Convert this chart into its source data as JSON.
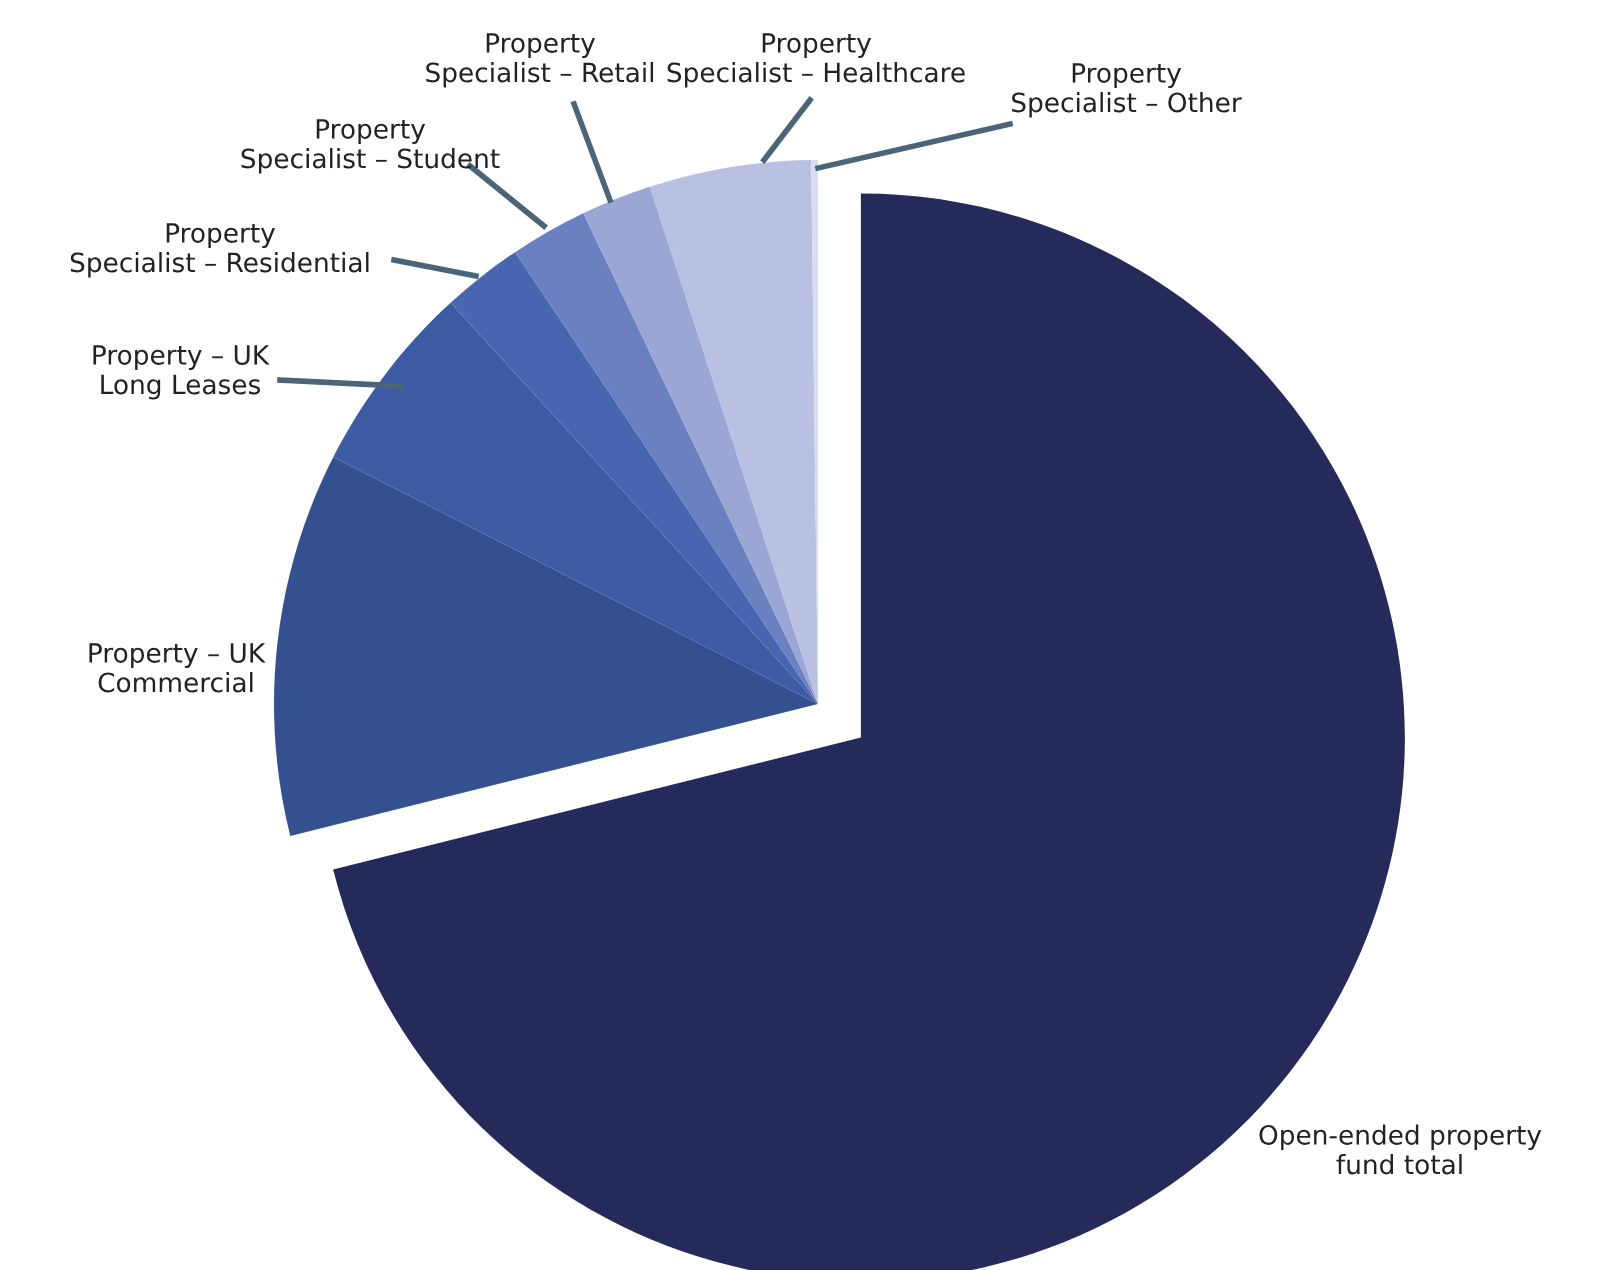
{
  "chart_data": {
    "type": "pie",
    "categories": [
      "Open-ended property\nfund total",
      "Property – UK\nCommercial",
      "Property – UK\nLong Leases",
      "Property\nSpecialist – Residential",
      "Property\nSpecialist – Student",
      "Property\nSpecialist – Retail",
      "Property\nSpecialist – Healthcare",
      "Property\nSpecialist – Other"
    ],
    "values": [
      71.1,
      11.4,
      5.7,
      2.4,
      2.3,
      2.1,
      4.8,
      0.2
    ],
    "colors": [
      "#252a5a",
      "#34508f",
      "#3d5ba3",
      "#4866b0",
      "#6a80c0",
      "#9aa6d4",
      "#b9c0e2",
      "#d9ddf0"
    ]
  }
}
